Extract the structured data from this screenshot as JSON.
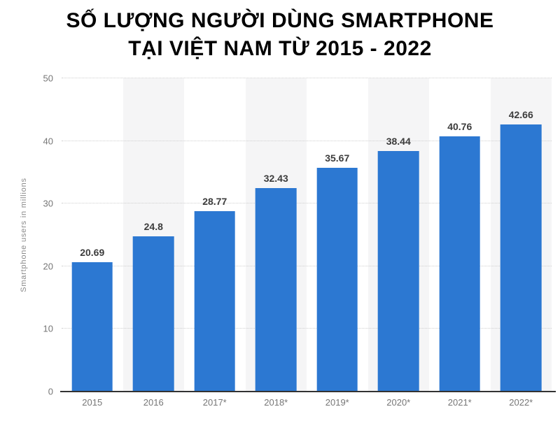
{
  "title": {
    "line1": "SỐ LƯỢNG NGƯỜI DÙNG SMARTPHONE",
    "line2": "TẠI VIỆT NAM TỪ 2015 - 2022"
  },
  "chart_data": {
    "type": "bar",
    "title": "SỐ LƯỢNG NGƯỜI DÙNG SMARTPHONE TẠI VIỆT NAM TỪ 2015 - 2022",
    "categories": [
      "2015",
      "2016",
      "2017*",
      "2018*",
      "2019*",
      "2020*",
      "2021*",
      "2022*"
    ],
    "values": [
      20.69,
      24.8,
      28.77,
      32.43,
      35.67,
      38.44,
      40.76,
      42.66
    ],
    "value_labels": [
      "20.69",
      "24.8",
      "28.77",
      "32.43",
      "35.67",
      "38.44",
      "40.76",
      "42.66"
    ],
    "xlabel": "",
    "ylabel": "Smartphone users in millions",
    "ylim": [
      0,
      50
    ],
    "yticks": [
      0,
      10,
      20,
      30,
      40,
      50
    ],
    "grid": "horizontal-dotted",
    "legend": "none",
    "plot_style": "alternating-column-bands",
    "colors": {
      "bar": "#2C78D2",
      "column_band": "#F5F5F6",
      "gridline": "#CFCFCF",
      "axis_line": "#333333",
      "value_label": "#3C3C3C",
      "tick_label": "#767676",
      "axis_title": "#8A8A8A",
      "title_text": "#000000",
      "background": "#FFFFFF"
    }
  }
}
